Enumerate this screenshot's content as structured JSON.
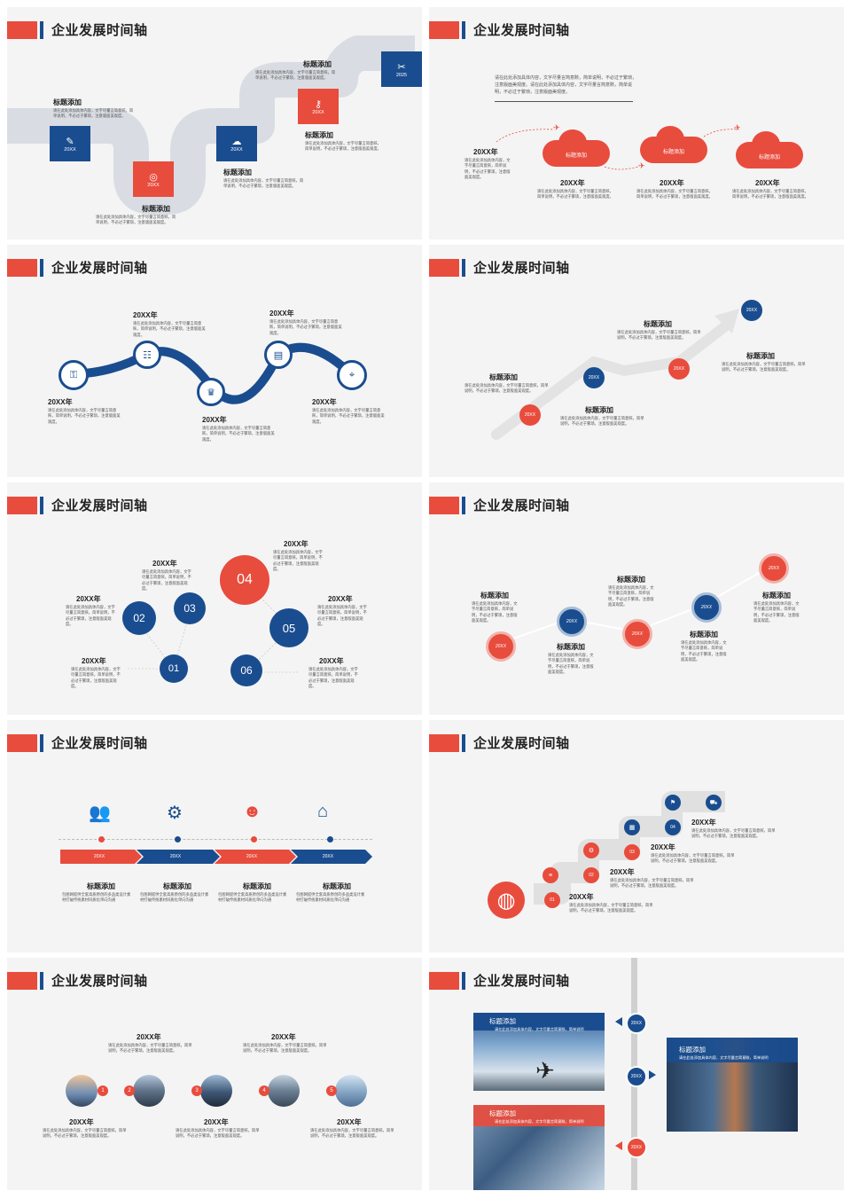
{
  "slide_title": "企业发展时间轴",
  "colors": {
    "red": "#e84c3d",
    "blue": "#1a4d8f",
    "grey": "#d9dde3",
    "bg": "#f4f4f4"
  },
  "s1": {
    "items": [
      {
        "year": "20XX",
        "title": "标题添加",
        "desc": "请在此处添加具体内容，文字尽量言简意赅，简单说明，不必过于繁琐，注意版面美观度。",
        "icon": "edit-icon"
      },
      {
        "year": "20XX",
        "title": "标题添加",
        "desc": "请在此处添加具体内容，文字尽量言简意赅，简单说明，不必过于繁琐，注意版面美观度。",
        "icon": "lifebuoy-icon"
      },
      {
        "year": "20XX",
        "title": "标题添加",
        "desc": "请在此处添加具体内容，文字尽量言简意赅，简单说明，不必过于繁琐，注意版面美观度。",
        "icon": "cloud-upload-icon"
      },
      {
        "year": "20XX",
        "title": "标题添加",
        "desc": "请在此处添加具体内容，文字尽量言简意赅，简单说明，不必过于繁琐，注意版面美观度。",
        "icon": "key-icon"
      },
      {
        "year": "2025",
        "title": "标题添加",
        "desc": "请在此处添加具体内容，文字尽量言简意赅，简单说明，不必过于繁琐，注意版面美观度。",
        "icon": "tools-icon"
      }
    ]
  },
  "s2": {
    "intro": "请在此处添加具体内容，文字尽量言简意赅，简单说明，不必过于繁琐，注意版面美观度。请在此处添加具体内容，文字尽量言简意赅，简单说明，不必过于繁琐，注意版面美观度。",
    "clouds": [
      "标题添加",
      "标题添加",
      "标题添加"
    ],
    "years": [
      "20XX年",
      "20XX年",
      "20XX年",
      "20XX年"
    ],
    "desc": "请在此处添加具体内容，文字尽量言简意赅，简单说明，不必过于繁琐，注意版面美观度。"
  },
  "s3": {
    "years": [
      "20XX年",
      "20XX年",
      "20XX年",
      "20XX年",
      "20XX年"
    ],
    "desc": "请在此处添加具体内容，文字尽量言简意赅，简单说明，不必过于繁琐，注意版面美观度。"
  },
  "s4": {
    "years": [
      "20XX",
      "20XX",
      "20XX",
      "20XX"
    ],
    "titles": [
      "标题添加",
      "标题添加",
      "标题添加",
      "标题添加"
    ],
    "desc": "请在此处添加具体内容，文字尽量言简意赅，简单说明，不必过于繁琐，注意版面美观度。"
  },
  "s5": {
    "numbers": [
      "01",
      "02",
      "03",
      "04",
      "05",
      "06"
    ],
    "years": [
      "20XX年",
      "20XX年",
      "20XX年",
      "20XX年",
      "20XX年",
      "20XX年"
    ],
    "desc": "请在此处添加具体内容，文字尽量言简意赅，简单说明，不必过于繁琐，注意版面美观度。"
  },
  "s6": {
    "years": [
      "20XX",
      "20XX",
      "20XX",
      "20XX",
      "20XX"
    ],
    "titles": [
      "标题添加",
      "标题添加",
      "标题添加",
      "标题添加",
      "标题添加"
    ],
    "desc": "请在此处添加具体内容，文字尽量言简意赅，简单说明，不必过于繁琐，注意版面美观度。"
  },
  "s7": {
    "years": [
      "20XX",
      "20XX",
      "20XX",
      "20XX"
    ],
    "titles": [
      "标题添加",
      "标题添加",
      "标题添加",
      "标题添加"
    ],
    "desc": "包图网提供全套高质原创的多品类设计素材打破传统素材同质化单向沟通",
    "icons": [
      "team-icon",
      "gears-icon",
      "presenter-icon",
      "house-fire-icon"
    ]
  },
  "s8": {
    "numbers": [
      "01",
      "02",
      "03",
      "04"
    ],
    "years": [
      "20XX年",
      "20XX年",
      "20XX年",
      "20XX年"
    ],
    "desc": "请在此处添加具体内容，文字尽量言简意赅，简单说明，不必过于繁琐，注意版面美观度。"
  },
  "s9": {
    "numbers": [
      "1",
      "2",
      "3",
      "4",
      "5"
    ],
    "years": [
      "20XX年",
      "20XX年",
      "20XX年",
      "20XX年",
      "20XX年"
    ],
    "desc": "请在此处添加具体内容，文字尽量言简意赅，简单说明，不必过于繁琐，注意版面美观度。"
  },
  "s10": {
    "titles": [
      "标题添加",
      "标题添加",
      "标题添加"
    ],
    "desc": "请在此处添加具体内容，文字尽量言简意赅，简单说明",
    "years": [
      "20XX",
      "20XX",
      "20XX"
    ]
  }
}
